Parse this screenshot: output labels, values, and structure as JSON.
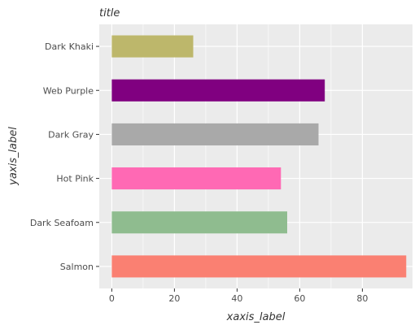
{
  "chart_data": {
    "type": "bar",
    "orientation": "horizontal",
    "title": "title",
    "xlabel": "xaxis_label",
    "ylabel": "yaxis_label",
    "categories": [
      "Salmon",
      "Dark Seafoam",
      "Hot Pink",
      "Dark Gray",
      "Web Purple",
      "Dark Khaki"
    ],
    "values": [
      94,
      56,
      54,
      66,
      68,
      26
    ],
    "colors": [
      "#FA8072",
      "#8FBC8F",
      "#FF69B4",
      "#A9A9A9",
      "#800080",
      "#BDB76B"
    ],
    "xlim": [
      -4,
      96
    ],
    "xticks": [
      0,
      20,
      40,
      60,
      80
    ],
    "grid": true,
    "panel_background": "#EBEBEB",
    "gridline_color": "#FFFFFF"
  }
}
